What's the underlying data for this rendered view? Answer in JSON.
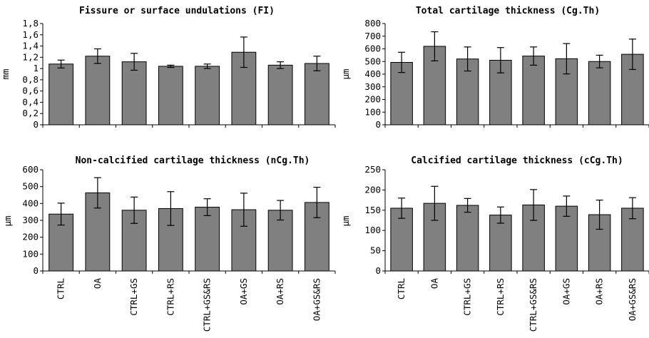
{
  "chart_data": [
    {
      "type": "bar",
      "title": "Fissure or surface undulations (FI)",
      "ylabel": "mm",
      "categories": [
        "CTRL",
        "OA",
        "CTRL+GS",
        "CTRL+RS",
        "CTRL+GS&RS",
        "OA+GS",
        "OA+RS",
        "OA+GS&RS"
      ],
      "values": [
        1.08,
        1.22,
        1.12,
        1.04,
        1.04,
        1.29,
        1.06,
        1.09
      ],
      "errors": [
        0.07,
        0.13,
        0.15,
        0.02,
        0.04,
        0.27,
        0.06,
        0.13
      ],
      "ylim": [
        0,
        1.8
      ],
      "yticks": [
        "0",
        "0,2",
        "0,4",
        "0,6",
        "0,8",
        "1",
        "1,2",
        "1,4",
        "1,6",
        "1,8"
      ],
      "bar_color": "#808080"
    },
    {
      "type": "bar",
      "title": "Total cartilage thickness (Cg.Th)",
      "ylabel": "µm",
      "categories": [
        "CTRL",
        "OA",
        "CTRL+GS",
        "CTRL+RS",
        "CTRL+GS&RS",
        "OA+GS",
        "OA+RS",
        "OA+GS&RS"
      ],
      "values": [
        493,
        620,
        520,
        510,
        543,
        522,
        500,
        557
      ],
      "errors": [
        80,
        115,
        95,
        100,
        72,
        120,
        50,
        120
      ],
      "ylim": [
        0,
        800
      ],
      "yticks": [
        "0",
        "100",
        "200",
        "300",
        "400",
        "500",
        "600",
        "700",
        "800"
      ],
      "bar_color": "#808080"
    },
    {
      "type": "bar",
      "title": "Non-calcified cartilage thickness (nCg.Th)",
      "ylabel": "µm",
      "categories": [
        "CTRL",
        "OA",
        "CTRL+GS",
        "CTRL+RS",
        "CTRL+GS&RS",
        "OA+GS",
        "OA+RS",
        "OA+GS&RS"
      ],
      "values": [
        337,
        463,
        360,
        370,
        378,
        363,
        360,
        406
      ],
      "errors": [
        65,
        90,
        78,
        100,
        50,
        98,
        58,
        90
      ],
      "ylim": [
        0,
        600
      ],
      "yticks": [
        "0",
        "100",
        "200",
        "300",
        "400",
        "500",
        "600"
      ],
      "bar_color": "#808080"
    },
    {
      "type": "bar",
      "title": "Calcified cartilage thickness (cCg.Th)",
      "ylabel": "µm",
      "categories": [
        "CTRL",
        "OA",
        "CTRL+GS",
        "CTRL+RS",
        "CTRL+GS&RS",
        "OA+GS",
        "OA+RS",
        "OA+GS&RS"
      ],
      "values": [
        155,
        167,
        162,
        138,
        163,
        160,
        139,
        155
      ],
      "errors": [
        25,
        42,
        17,
        20,
        38,
        25,
        36,
        26
      ],
      "ylim": [
        0,
        250
      ],
      "yticks": [
        "0",
        "50",
        "100",
        "150",
        "200",
        "250"
      ],
      "bar_color": "#808080"
    }
  ]
}
